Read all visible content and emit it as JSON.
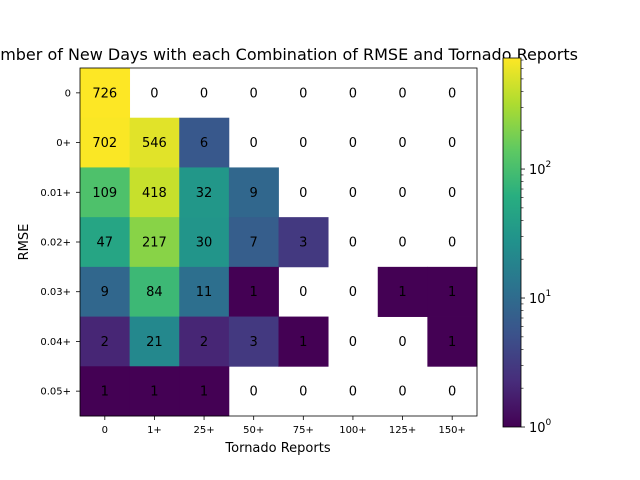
{
  "chart_data": {
    "type": "heatmap",
    "title": "Number of New Days with each Combination of RMSE and Tornado Reports",
    "xlabel": "Tornado Reports",
    "ylabel": "RMSE",
    "x_categories": [
      "0",
      "1+",
      "25+",
      "50+",
      "75+",
      "100+",
      "125+",
      "150+"
    ],
    "y_categories": [
      "0",
      "0+",
      "0.01+",
      "0.02+",
      "0.03+",
      "0.04+",
      "0.05+"
    ],
    "values": [
      [
        726,
        0,
        0,
        0,
        0,
        0,
        0,
        0
      ],
      [
        702,
        546,
        6,
        0,
        0,
        0,
        0,
        0
      ],
      [
        109,
        418,
        32,
        9,
        0,
        0,
        0,
        0
      ],
      [
        47,
        217,
        30,
        7,
        3,
        0,
        0,
        0
      ],
      [
        9,
        84,
        11,
        1,
        0,
        0,
        1,
        1
      ],
      [
        2,
        21,
        2,
        3,
        1,
        0,
        0,
        1
      ],
      [
        1,
        1,
        1,
        0,
        0,
        0,
        0,
        0
      ]
    ],
    "zero_cells_blank": true,
    "colorbar": {
      "scale": "log",
      "colormap": "viridis",
      "range": [
        1,
        726
      ],
      "tick_labels": [
        {
          "value": 1,
          "base": "10",
          "exp": "0"
        },
        {
          "value": 10,
          "base": "10",
          "exp": "1"
        },
        {
          "value": 100,
          "base": "10",
          "exp": "2"
        }
      ]
    },
    "grid": false
  }
}
